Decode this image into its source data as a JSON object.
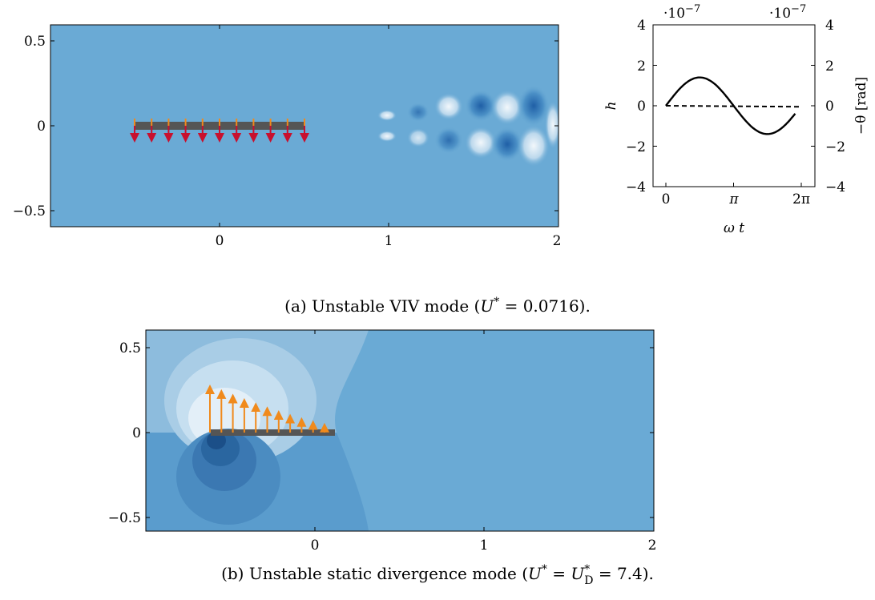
{
  "figure_a": {
    "caption": "(a) Unstable VIV mode (U* = 0.0716).",
    "caption_parts": {
      "prefix": "(a) Unstable VIV mode (",
      "U": "U",
      "star": "*",
      "eq": " = 0.0716)."
    },
    "field_plot": {
      "x_ticks": [
        "0",
        "1",
        "2"
      ],
      "y_ticks": [
        "0.5",
        "0",
        "−0.5"
      ]
    }
  },
  "figure_b": {
    "caption": "(b) Unstable static divergence mode (U* = U*D = 7.4).",
    "caption_parts": {
      "prefix": "(b) Unstable static divergence mode (",
      "U": "U",
      "star": "*",
      "eq": " = ",
      "U2": "U",
      "star2": "*",
      "sub": "D",
      "tail": " = 7.4)."
    },
    "field_plot": {
      "x_ticks": [
        "0",
        "1",
        "2"
      ],
      "y_ticks": [
        "0.5",
        "0",
        "−0.5"
      ]
    }
  },
  "colors": {
    "field_base": "#6aaad5",
    "plate": "#555555",
    "arrow_orange": "#f08a1c",
    "arrow_red": "#c8102e"
  },
  "chart_data": [
    {
      "type": "line",
      "xlabel": "ω t",
      "ylabel_left": "h",
      "ylabel_right": "−θ [rad]",
      "x_tick_labels": [
        "0",
        "π",
        "2π"
      ],
      "xlim": [
        0,
        6.2832
      ],
      "ylim_left": [
        -4,
        4
      ],
      "ylim_right": [
        -4,
        4
      ],
      "left_scale_label": "·10",
      "left_scale_exp": "−7",
      "right_scale_label": "·10",
      "right_scale_exp": "−7",
      "y_ticks_left": [
        "4",
        "2",
        "0",
        "−2",
        "−4"
      ],
      "y_ticks_right": [
        "4",
        "2",
        "0",
        "−2",
        "−4"
      ],
      "series": [
        {
          "style": "solid",
          "function": "h",
          "amplitude": 1.4,
          "x": [
            0,
            0.785,
            1.571,
            2.356,
            3.142,
            3.927,
            4.712,
            5.498,
            6.283
          ],
          "y": [
            0,
            0.99,
            1.4,
            0.99,
            0,
            -0.99,
            -1.4,
            -0.99,
            -0.2
          ]
        },
        {
          "style": "dashed",
          "function": "-theta",
          "x": [
            0,
            6.283
          ],
          "y": [
            0,
            -0.05
          ]
        }
      ]
    }
  ]
}
